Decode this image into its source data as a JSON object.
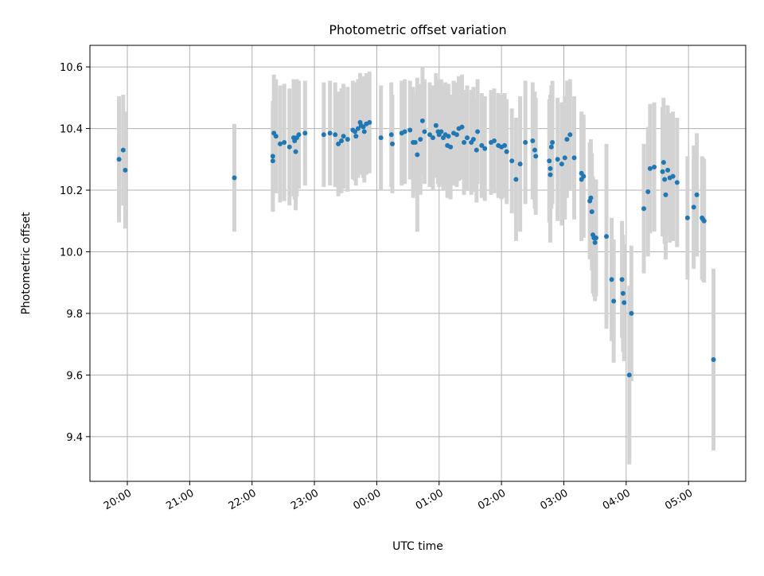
{
  "chart_data": {
    "type": "scatter",
    "title": "Photometric offset variation",
    "xlabel": "UTC time",
    "ylabel": "Photometric offset",
    "x_axis_kind": "time (UTC)",
    "x_tick_labels": [
      "20:00",
      "21:00",
      "22:00",
      "23:00",
      "00:00",
      "01:00",
      "02:00",
      "03:00",
      "04:00",
      "05:00"
    ],
    "y_tick_labels": [
      "9.4",
      "9.6",
      "9.8",
      "10.0",
      "10.2",
      "10.4",
      "10.6"
    ],
    "y_ticks": [
      9.4,
      9.6,
      9.8,
      10.0,
      10.2,
      10.4,
      10.6
    ],
    "xlim": [
      "19:24",
      "05:55"
    ],
    "ylim": [
      9.255,
      10.67
    ],
    "grid": true,
    "marker_color": "#1f77b4",
    "errorbar_color": "#d3d3d3",
    "series": [
      {
        "points": [
          [
            "19:52",
            10.3,
            0.205
          ],
          [
            "19:56",
            10.33,
            0.18
          ],
          [
            "19:58",
            10.265,
            0.19
          ],
          [
            "21:43",
            10.24,
            0.175
          ],
          [
            "22:20",
            10.31,
            0.18
          ],
          [
            "22:20",
            10.295,
            0.165
          ],
          [
            "22:21",
            10.385,
            0.19
          ],
          [
            "22:23",
            10.375,
            0.185
          ],
          [
            "22:27",
            10.35,
            0.19
          ],
          [
            "22:31",
            10.355,
            0.19
          ],
          [
            "22:36",
            10.34,
            0.19
          ],
          [
            "22:40",
            10.37,
            0.19
          ],
          [
            "22:41",
            10.36,
            0.19
          ],
          [
            "22:42",
            10.325,
            0.19
          ],
          [
            "22:43",
            10.37,
            0.19
          ],
          [
            "22:45",
            10.38,
            0.175
          ],
          [
            "22:51",
            10.385,
            0.17
          ],
          [
            "23:09",
            10.38,
            0.17
          ],
          [
            "23:15",
            10.385,
            0.17
          ],
          [
            "23:20",
            10.38,
            0.17
          ],
          [
            "23:23",
            10.35,
            0.17
          ],
          [
            "23:26",
            10.36,
            0.17
          ],
          [
            "23:28",
            10.375,
            0.17
          ],
          [
            "23:32",
            10.365,
            0.17
          ],
          [
            "23:37",
            10.395,
            0.16
          ],
          [
            "23:39",
            10.39,
            0.16
          ],
          [
            "23:40",
            10.375,
            0.16
          ],
          [
            "23:42",
            10.4,
            0.16
          ],
          [
            "23:44",
            10.42,
            0.16
          ],
          [
            "23:45",
            10.41,
            0.16
          ],
          [
            "23:47",
            10.405,
            0.165
          ],
          [
            "23:48",
            10.39,
            0.165
          ],
          [
            "23:50",
            10.415,
            0.165
          ],
          [
            "23:53",
            10.42,
            0.165
          ],
          [
            "00:04",
            10.37,
            0.17
          ],
          [
            "00:14",
            10.38,
            0.17
          ],
          [
            "00:15",
            10.35,
            0.16
          ],
          [
            "00:24",
            10.385,
            0.17
          ],
          [
            "00:27",
            10.39,
            0.17
          ],
          [
            "00:32",
            10.395,
            0.16
          ],
          [
            "00:35",
            10.355,
            0.18
          ],
          [
            "00:37",
            10.355,
            0.16
          ],
          [
            "00:39",
            10.315,
            0.25
          ],
          [
            "00:42",
            10.365,
            0.18
          ],
          [
            "00:44",
            10.425,
            0.175
          ],
          [
            "00:46",
            10.39,
            0.17
          ],
          [
            "00:51",
            10.38,
            0.17
          ],
          [
            "00:54",
            10.37,
            0.17
          ],
          [
            "00:57",
            10.41,
            0.17
          ],
          [
            "00:59",
            10.39,
            0.17
          ],
          [
            "01:00",
            10.38,
            0.17
          ],
          [
            "01:02",
            10.39,
            0.17
          ],
          [
            "01:04",
            10.37,
            0.17
          ],
          [
            "01:06",
            10.38,
            0.17
          ],
          [
            "01:08",
            10.345,
            0.17
          ],
          [
            "01:09",
            10.375,
            0.17
          ],
          [
            "01:11",
            10.34,
            0.17
          ],
          [
            "01:14",
            10.385,
            0.17
          ],
          [
            "01:17",
            10.38,
            0.17
          ],
          [
            "01:19",
            10.4,
            0.17
          ],
          [
            "01:22",
            10.405,
            0.17
          ],
          [
            "01:24",
            10.355,
            0.17
          ],
          [
            "01:27",
            10.37,
            0.17
          ],
          [
            "01:31",
            10.355,
            0.17
          ],
          [
            "01:33",
            10.365,
            0.17
          ],
          [
            "01:36",
            10.33,
            0.17
          ],
          [
            "01:37",
            10.39,
            0.17
          ],
          [
            "01:41",
            10.345,
            0.17
          ],
          [
            "01:44",
            10.335,
            0.17
          ],
          [
            "01:50",
            10.355,
            0.17
          ],
          [
            "01:53",
            10.36,
            0.17
          ],
          [
            "01:57",
            10.345,
            0.17
          ],
          [
            "02:00",
            10.34,
            0.17
          ],
          [
            "02:03",
            10.345,
            0.17
          ],
          [
            "02:05",
            10.325,
            0.17
          ],
          [
            "02:10",
            10.295,
            0.17
          ],
          [
            "02:14",
            10.235,
            0.2
          ],
          [
            "02:18",
            10.285,
            0.22
          ],
          [
            "02:23",
            10.355,
            0.2
          ],
          [
            "02:30",
            10.36,
            0.19
          ],
          [
            "02:32",
            10.33,
            0.19
          ],
          [
            "02:33",
            10.31,
            0.19
          ],
          [
            "02:46",
            10.295,
            0.2
          ],
          [
            "02:47",
            10.27,
            0.24
          ],
          [
            "02:47",
            10.25,
            0.19
          ],
          [
            "02:48",
            10.34,
            0.2
          ],
          [
            "02:49",
            10.355,
            0.2
          ],
          [
            "02:54",
            10.3,
            0.2
          ],
          [
            "02:58",
            10.285,
            0.2
          ],
          [
            "03:01",
            10.305,
            0.2
          ],
          [
            "03:03",
            10.365,
            0.19
          ],
          [
            "03:06",
            10.38,
            0.18
          ],
          [
            "03:10",
            10.305,
            0.2
          ],
          [
            "03:17",
            10.235,
            0.2
          ],
          [
            "03:17",
            10.255,
            0.2
          ],
          [
            "03:19",
            10.245,
            0.2
          ],
          [
            "03:25",
            10.165,
            0.19
          ],
          [
            "03:26",
            10.175,
            0.19
          ],
          [
            "03:27",
            10.13,
            0.19
          ],
          [
            "03:28",
            10.055,
            0.19
          ],
          [
            "03:29",
            10.045,
            0.19
          ],
          [
            "03:30",
            10.03,
            0.19
          ],
          [
            "03:31",
            10.045,
            0.19
          ],
          [
            "03:41",
            10.05,
            0.3
          ],
          [
            "03:46",
            9.91,
            0.2
          ],
          [
            "03:48",
            9.84,
            0.2
          ],
          [
            "03:56",
            9.91,
            0.19
          ],
          [
            "03:57",
            9.865,
            0.19
          ],
          [
            "03:58",
            9.835,
            0.19
          ],
          [
            "04:03",
            9.6,
            0.29
          ],
          [
            "04:05",
            9.8,
            0.22
          ],
          [
            "04:17",
            10.14,
            0.21
          ],
          [
            "04:21",
            10.195,
            0.21
          ],
          [
            "04:23",
            10.27,
            0.21
          ],
          [
            "04:27",
            10.275,
            0.21
          ],
          [
            "04:35",
            10.26,
            0.21
          ],
          [
            "04:36",
            10.29,
            0.21
          ],
          [
            "04:37",
            10.235,
            0.21
          ],
          [
            "04:38",
            10.185,
            0.21
          ],
          [
            "04:40",
            10.265,
            0.21
          ],
          [
            "04:42",
            10.24,
            0.21
          ],
          [
            "04:45",
            10.245,
            0.21
          ],
          [
            "04:49",
            10.225,
            0.21
          ],
          [
            "04:59",
            10.11,
            0.2
          ],
          [
            "05:05",
            10.145,
            0.2
          ],
          [
            "05:08",
            10.185,
            0.2
          ],
          [
            "05:13",
            10.11,
            0.2
          ],
          [
            "05:14",
            10.105,
            0.2
          ],
          [
            "05:15",
            10.1,
            0.2
          ],
          [
            "05:24",
            9.65,
            0.295
          ]
        ]
      }
    ]
  }
}
